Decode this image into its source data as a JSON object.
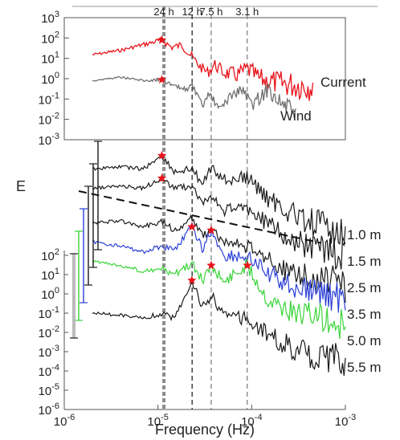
{
  "chart_data": [
    {
      "type": "line",
      "panel": "top",
      "xscale": "log",
      "yscale": "log",
      "xlim": [
        1e-06,
        0.001
      ],
      "ylim": [
        0.001,
        1000.0
      ],
      "y_ticks": [
        {
          "value": 1000.0,
          "base": "10",
          "exp": "3"
        },
        {
          "value": 100.0,
          "base": "10",
          "exp": "2"
        },
        {
          "value": 10.0,
          "base": "10",
          "exp": "1"
        },
        {
          "value": 1.0,
          "base": "10",
          "exp": "0"
        },
        {
          "value": 0.1,
          "base": "10",
          "exp": "-1"
        },
        {
          "value": 0.01,
          "base": "10",
          "exp": "-2"
        },
        {
          "value": 0.001,
          "base": "10",
          "exp": "-3"
        }
      ],
      "period_lines": [
        {
          "label": "24 h",
          "freq": 1.157e-05,
          "style": "thick-dashed"
        },
        {
          "label": "12 h",
          "freq": 2.315e-05,
          "style": "dashed"
        },
        {
          "label": "7.5 h",
          "freq": 3.7e-05,
          "style": "dashed"
        },
        {
          "label": "3.1 h",
          "freq": 8.96e-05,
          "style": "dashed"
        }
      ],
      "series": [
        {
          "name": "Current",
          "color": "#e8141b",
          "x_range": [
            2e-06,
            0.00045
          ],
          "points": [
            [
              2e-06,
              15
            ],
            [
              4e-06,
              25
            ],
            [
              6e-06,
              40
            ],
            [
              8e-06,
              55
            ],
            [
              1.1e-05,
              80
            ],
            [
              1.4e-05,
              35
            ],
            [
              1.8e-05,
              45
            ],
            [
              2.3e-05,
              12
            ],
            [
              2.8e-05,
              4
            ],
            [
              3.4e-05,
              2
            ],
            [
              4e-05,
              5
            ],
            [
              5e-05,
              2
            ],
            [
              7e-05,
              1.5
            ],
            [
              9e-05,
              3
            ],
            [
              0.00012,
              1
            ],
            [
              0.0002,
              0.6
            ],
            [
              0.0003,
              0.5
            ],
            [
              0.00045,
              0.5
            ]
          ],
          "peaks": [
            [
              1.1e-05,
              80
            ]
          ]
        },
        {
          "name": "Wind",
          "color": "#707070",
          "x_range": [
            2e-06,
            0.0003
          ],
          "points": [
            [
              2e-06,
              0.8
            ],
            [
              4e-06,
              1.2
            ],
            [
              7e-06,
              0.8
            ],
            [
              1.1e-05,
              0.9
            ],
            [
              1.5e-05,
              0.4
            ],
            [
              2e-05,
              0.3
            ],
            [
              2.3e-05,
              0.5
            ],
            [
              3e-05,
              0.04
            ],
            [
              3.5e-05,
              0.2
            ],
            [
              4.5e-05,
              0.03
            ],
            [
              6e-05,
              0.15
            ],
            [
              8e-05,
              0.3
            ],
            [
              0.0001,
              0.05
            ],
            [
              0.00015,
              0.3
            ],
            [
              0.00022,
              0.05
            ],
            [
              0.0003,
              0.02
            ]
          ],
          "peaks": [
            [
              1.1e-05,
              0.9
            ]
          ]
        }
      ]
    },
    {
      "type": "line",
      "panel": "bottom",
      "ylabel": "E",
      "xlabel": "Frequency (Hz)",
      "xscale": "log",
      "yscale": "log",
      "xlim": [
        1e-06,
        0.001
      ],
      "ylim": [
        1e-06,
        100.0
      ],
      "x_ticks": [
        {
          "value": 1e-06,
          "base": "10",
          "exp": "-6"
        },
        {
          "value": 1e-05,
          "base": "10",
          "exp": "-5"
        },
        {
          "value": 0.0001,
          "base": "10",
          "exp": "-4"
        },
        {
          "value": 0.001,
          "base": "10",
          "exp": "-3"
        }
      ],
      "y_ticks": [
        {
          "value": 100.0,
          "base": "10",
          "exp": "2"
        },
        {
          "value": 10.0,
          "base": "10",
          "exp": "1"
        },
        {
          "value": 1.0,
          "base": "10",
          "exp": "0"
        },
        {
          "value": 0.1,
          "base": "10",
          "exp": "-1"
        },
        {
          "value": 0.01,
          "base": "10",
          "exp": "-2"
        },
        {
          "value": 0.001,
          "base": "10",
          "exp": "-3"
        },
        {
          "value": 0.0001,
          "base": "10",
          "exp": "-4"
        },
        {
          "value": 1e-05,
          "base": "10",
          "exp": "-5"
        },
        {
          "value": 1e-06,
          "base": "10",
          "exp": "-6"
        }
      ],
      "reference_slope": {
        "style": "dashed",
        "from": [
          1e-06,
          1000000.0
        ],
        "to": [
          0.001,
          3000.0
        ]
      },
      "series": [
        {
          "name": "1.0 m",
          "color": "#1a1a1a",
          "offset_decades": 5,
          "points": [
            [
              2e-06,
              30.0
            ],
            [
              4e-06,
              40.0
            ],
            [
              7e-06,
              30.0
            ],
            [
              1.1e-05,
              150.0
            ],
            [
              1.5e-05,
              20.0
            ],
            [
              2.3e-05,
              30.0
            ],
            [
              3e-05,
              5
            ],
            [
              3.7e-05,
              40.0
            ],
            [
              5e-05,
              8
            ],
            [
              9e-05,
              10.0
            ],
            [
              0.00015,
              0.8
            ],
            [
              0.0003,
              0.1
            ],
            [
              0.0006,
              0.03
            ],
            [
              0.001,
              0.02
            ]
          ],
          "peaks": [
            [
              1.1e-05,
              150.0
            ]
          ]
        },
        {
          "name": "1.5 m",
          "color": "#1a1a1a",
          "offset_decades": 4,
          "points": [
            [
              2e-06,
              30.0
            ],
            [
              4e-06,
              40.0
            ],
            [
              7e-06,
              30.0
            ],
            [
              1.1e-05,
              100.0
            ],
            [
              1.5e-05,
              30.0
            ],
            [
              2.3e-05,
              40.0
            ],
            [
              3e-05,
              5
            ],
            [
              3.7e-05,
              10.0
            ],
            [
              5e-05,
              2
            ],
            [
              9e-05,
              3
            ],
            [
              0.00015,
              0.4
            ],
            [
              0.0003,
              0.05
            ],
            [
              0.0006,
              0.02
            ],
            [
              0.001,
              0.01
            ]
          ],
          "peaks": [
            [
              1.1e-05,
              100.0
            ]
          ]
        },
        {
          "name": "2.5 m",
          "color": "#1a1a1a",
          "offset_decades": 3,
          "points": [
            [
              2e-06,
              5
            ],
            [
              4e-06,
              6
            ],
            [
              7e-06,
              3
            ],
            [
              1.1e-05,
              6
            ],
            [
              1.5e-05,
              2
            ],
            [
              2.3e-05,
              8
            ],
            [
              3e-05,
              1
            ],
            [
              3.7e-05,
              3
            ],
            [
              5e-05,
              0.5
            ],
            [
              9e-05,
              0.3
            ],
            [
              0.00015,
              0.05
            ],
            [
              0.0003,
              0.01
            ],
            [
              0.0006,
              0.005
            ],
            [
              0.001,
              0.003
            ]
          ],
          "peaks": []
        },
        {
          "name": "3.5 m",
          "color": "#2b3fd6",
          "offset_decades": 2,
          "points": [
            [
              2e-06,
              5
            ],
            [
              4e-06,
              3
            ],
            [
              7e-06,
              1.5
            ],
            [
              1.1e-05,
              3
            ],
            [
              1.5e-05,
              2
            ],
            [
              2.3e-05,
              30.0
            ],
            [
              3e-05,
              2
            ],
            [
              3.7e-05,
              20.0
            ],
            [
              5e-05,
              1
            ],
            [
              9e-05,
              0.8
            ],
            [
              0.00015,
              0.1
            ],
            [
              0.0003,
              0.02
            ],
            [
              0.0006,
              0.01
            ],
            [
              0.001,
              0.005
            ]
          ],
          "peaks": [
            [
              2.3e-05,
              30.0
            ],
            [
              3.7e-05,
              20.0
            ]
          ]
        },
        {
          "name": "5.0 m",
          "color": "#3ad43a",
          "offset_decades": 1,
          "points": [
            [
              2e-06,
              5
            ],
            [
              4e-06,
              3
            ],
            [
              7e-06,
              1.5
            ],
            [
              1.1e-05,
              2
            ],
            [
              1.5e-05,
              1
            ],
            [
              2.3e-05,
              4
            ],
            [
              3e-05,
              0.5
            ],
            [
              3.7e-05,
              3
            ],
            [
              5e-05,
              0.4
            ],
            [
              9e-05,
              3
            ],
            [
              0.00015,
              0.05
            ],
            [
              0.0003,
              0.01
            ],
            [
              0.0006,
              0.005
            ],
            [
              0.001,
              0.003
            ]
          ],
          "peaks": [
            [
              3.7e-05,
              3
            ],
            [
              9e-05,
              3
            ]
          ]
        },
        {
          "name": "5.5 m",
          "color": "#1a1a1a",
          "offset_decades": 0,
          "points": [
            [
              2e-06,
              0.1
            ],
            [
              4e-06,
              0.08
            ],
            [
              7e-06,
              0.05
            ],
            [
              1.1e-05,
              0.1
            ],
            [
              1.5e-05,
              0.05
            ],
            [
              2.3e-05,
              5
            ],
            [
              3e-05,
              0.2
            ],
            [
              3.7e-05,
              0.8
            ],
            [
              5e-05,
              0.1
            ],
            [
              9e-05,
              0.05
            ],
            [
              0.00015,
              0.01
            ],
            [
              0.0003,
              0.001
            ],
            [
              0.0006,
              0.0005
            ],
            [
              0.001,
              0.0003
            ]
          ],
          "peaks": [
            [
              2.3e-05,
              5
            ]
          ]
        }
      ],
      "confidence_bars": [
        {
          "color": "#1a1a1a"
        },
        {
          "color": "#1a1a1a"
        },
        {
          "color": "#1a1a1a"
        },
        {
          "color": "#2b3fd6"
        },
        {
          "color": "#3ad43a"
        },
        {
          "color": "#1a1a1a"
        }
      ]
    }
  ]
}
